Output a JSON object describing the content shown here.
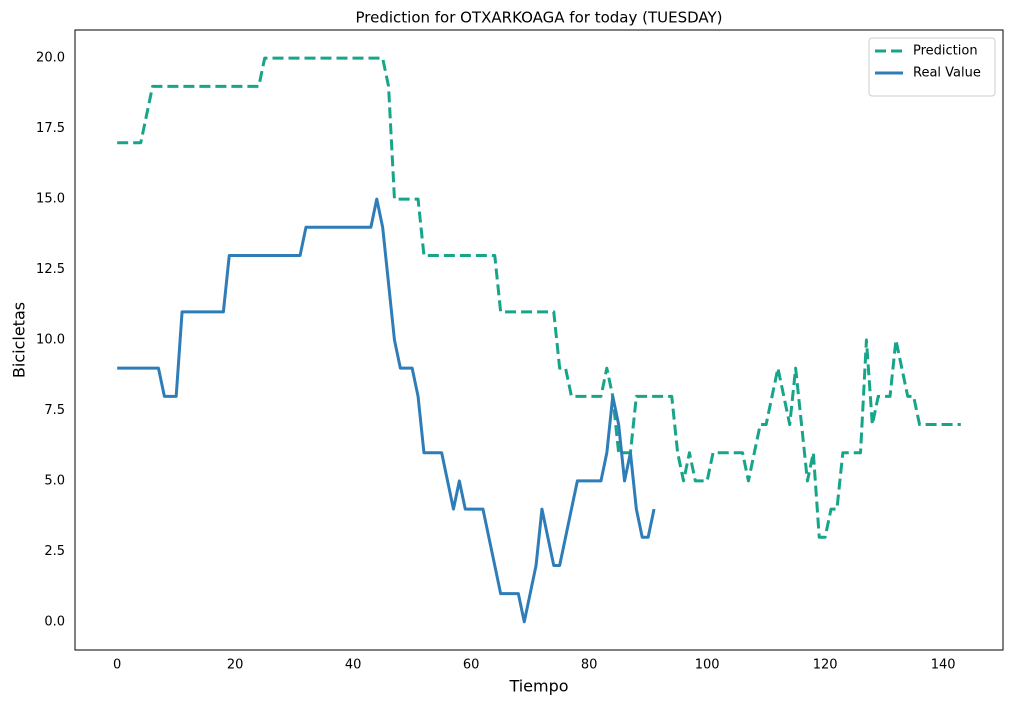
{
  "chart_data": {
    "type": "line",
    "title": "Prediction for OTXARKOAGA for today (TUESDAY)",
    "x_label": "Tiempo",
    "y_label": "Bicicletas",
    "xlim": [
      -7.15,
      150.15
    ],
    "ylim": [
      -1,
      21
    ],
    "xticks": [
      0,
      20,
      40,
      60,
      80,
      100,
      120,
      140
    ],
    "yticks": [
      {
        "value": 0,
        "label": "0.0"
      },
      {
        "value": 2.5,
        "label": "2.5"
      },
      {
        "value": 5,
        "label": "5.0"
      },
      {
        "value": 7.5,
        "label": "7.5"
      },
      {
        "value": 10,
        "label": "10.0"
      },
      {
        "value": 12.5,
        "label": "12.5"
      },
      {
        "value": 15,
        "label": "15.0"
      },
      {
        "value": 17.5,
        "label": "17.5"
      },
      {
        "value": 20,
        "label": "20.0"
      }
    ],
    "grid": false,
    "legend": "upper right",
    "series": [
      {
        "name": "Prediction",
        "color": "#17a589",
        "dashed": true,
        "x": [
          0,
          1,
          2,
          3,
          4,
          5,
          6,
          7,
          8,
          9,
          10,
          11,
          12,
          13,
          14,
          15,
          16,
          17,
          18,
          19,
          20,
          21,
          22,
          23,
          24,
          25,
          26,
          27,
          28,
          29,
          30,
          31,
          32,
          33,
          34,
          35,
          36,
          37,
          38,
          39,
          40,
          41,
          42,
          43,
          44,
          45,
          46,
          47,
          48,
          49,
          50,
          51,
          52,
          53,
          54,
          55,
          56,
          57,
          58,
          59,
          60,
          61,
          62,
          63,
          64,
          65,
          66,
          67,
          68,
          69,
          70,
          71,
          72,
          73,
          74,
          75,
          76,
          77,
          78,
          79,
          80,
          81,
          82,
          83,
          84,
          85,
          86,
          87,
          88,
          89,
          90,
          91,
          92,
          93,
          94,
          95,
          96,
          97,
          98,
          99,
          100,
          101,
          102,
          103,
          104,
          105,
          106,
          107,
          108,
          109,
          110,
          111,
          112,
          113,
          114,
          115,
          116,
          117,
          118,
          119,
          120,
          121,
          122,
          123,
          124,
          125,
          126,
          127,
          128,
          129,
          130,
          131,
          132,
          133,
          134,
          135,
          136,
          137,
          138,
          139,
          140,
          141,
          142,
          143
        ],
        "values": [
          17,
          17,
          17,
          17,
          17,
          18,
          19,
          19,
          19,
          19,
          19,
          19,
          19,
          19,
          19,
          19,
          19,
          19,
          19,
          19,
          19,
          19,
          19,
          19,
          19,
          20,
          20,
          20,
          20,
          20,
          20,
          20,
          20,
          20,
          20,
          20,
          20,
          20,
          20,
          20,
          20,
          20,
          20,
          20,
          20,
          20,
          19,
          15,
          15,
          15,
          15,
          15,
          13,
          13,
          13,
          13,
          13,
          13,
          13,
          13,
          13,
          13,
          13,
          13,
          13,
          11,
          11,
          11,
          11,
          11,
          11,
          11,
          11,
          11,
          11,
          9,
          9,
          8,
          8,
          8,
          8,
          8,
          8,
          9,
          8,
          6,
          6,
          6,
          8,
          8,
          8,
          8,
          8,
          8,
          8,
          6,
          5,
          6,
          5,
          5,
          5,
          6,
          6,
          6,
          6,
          6,
          6,
          5,
          6,
          7,
          7,
          8,
          9,
          8,
          7,
          9,
          7,
          5,
          6,
          3,
          3,
          4,
          4,
          6,
          6,
          6,
          6,
          10,
          7,
          8,
          8,
          8,
          10,
          9,
          8,
          8,
          7,
          7,
          7,
          7,
          7,
          7,
          7,
          7
        ]
      },
      {
        "name": "Real Value",
        "color": "#2e7db8",
        "dashed": false,
        "x": [
          0,
          1,
          2,
          3,
          4,
          5,
          6,
          7,
          8,
          9,
          10,
          11,
          12,
          13,
          14,
          15,
          16,
          17,
          18,
          19,
          20,
          21,
          22,
          23,
          24,
          25,
          26,
          27,
          28,
          29,
          30,
          31,
          32,
          33,
          34,
          35,
          36,
          37,
          38,
          39,
          40,
          41,
          42,
          43,
          44,
          45,
          46,
          47,
          48,
          49,
          50,
          51,
          52,
          53,
          54,
          55,
          56,
          57,
          58,
          59,
          60,
          61,
          62,
          63,
          64,
          65,
          66,
          67,
          68,
          69,
          70,
          71,
          72,
          73,
          74,
          75,
          76,
          77,
          78,
          79,
          80,
          81,
          82,
          83,
          84,
          85,
          86,
          87,
          88,
          89,
          90,
          91
        ],
        "values": [
          9,
          9,
          9,
          9,
          9,
          9,
          9,
          9,
          8,
          8,
          8,
          11,
          11,
          11,
          11,
          11,
          11,
          11,
          11,
          13,
          13,
          13,
          13,
          13,
          13,
          13,
          13,
          13,
          13,
          13,
          13,
          13,
          14,
          14,
          14,
          14,
          14,
          14,
          14,
          14,
          14,
          14,
          14,
          14,
          15,
          14,
          12,
          10,
          9,
          9,
          9,
          8,
          6,
          6,
          6,
          6,
          5,
          4,
          5,
          4,
          4,
          4,
          4,
          3,
          2,
          1,
          1,
          1,
          1,
          0,
          1,
          2,
          4,
          3,
          2,
          2,
          3,
          4,
          5,
          5,
          5,
          5,
          5,
          6,
          8,
          7,
          5,
          6,
          4,
          3,
          3,
          4
        ]
      }
    ]
  }
}
